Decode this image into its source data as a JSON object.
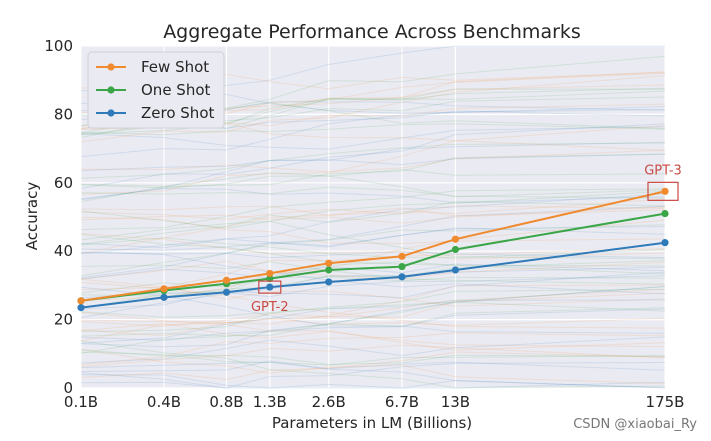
{
  "chart_data": {
    "type": "line",
    "title": "Aggregate Performance Across Benchmarks",
    "xlabel": "Parameters in LM (Billions)",
    "ylabel": "Accuracy",
    "ylim": [
      0,
      100
    ],
    "yticks": [
      0,
      20,
      40,
      60,
      80,
      100
    ],
    "categories": [
      "0.1B",
      "0.4B",
      "0.8B",
      "1.3B",
      "2.6B",
      "6.7B",
      "13B",
      "175B"
    ],
    "x_log_params": [
      0.125,
      0.35,
      0.76,
      1.3,
      2.7,
      6.7,
      13,
      175
    ],
    "grid": true,
    "legend_position": "top-left",
    "series": [
      {
        "name": "Few Shot",
        "color": "#f08a2e",
        "values": [
          25.5,
          29.0,
          31.5,
          33.5,
          36.5,
          38.5,
          43.5,
          57.5
        ]
      },
      {
        "name": "One Shot",
        "color": "#3aa648",
        "values": [
          25.5,
          28.5,
          30.5,
          32.0,
          34.5,
          35.5,
          40.5,
          51.0
        ]
      },
      {
        "name": "Zero Shot",
        "color": "#2f7ab9",
        "values": [
          23.5,
          26.5,
          28.0,
          29.5,
          31.0,
          32.5,
          34.5,
          42.5
        ]
      }
    ],
    "annotations": [
      {
        "text": "GPT-2",
        "series": "Zero Shot",
        "category": "1.3B",
        "color": "#c94a44"
      },
      {
        "text": "GPT-3",
        "series": "Few Shot",
        "category": "175B",
        "color": "#c94a44"
      }
    ]
  },
  "watermark": "CSDN @xiaobai_Ry"
}
